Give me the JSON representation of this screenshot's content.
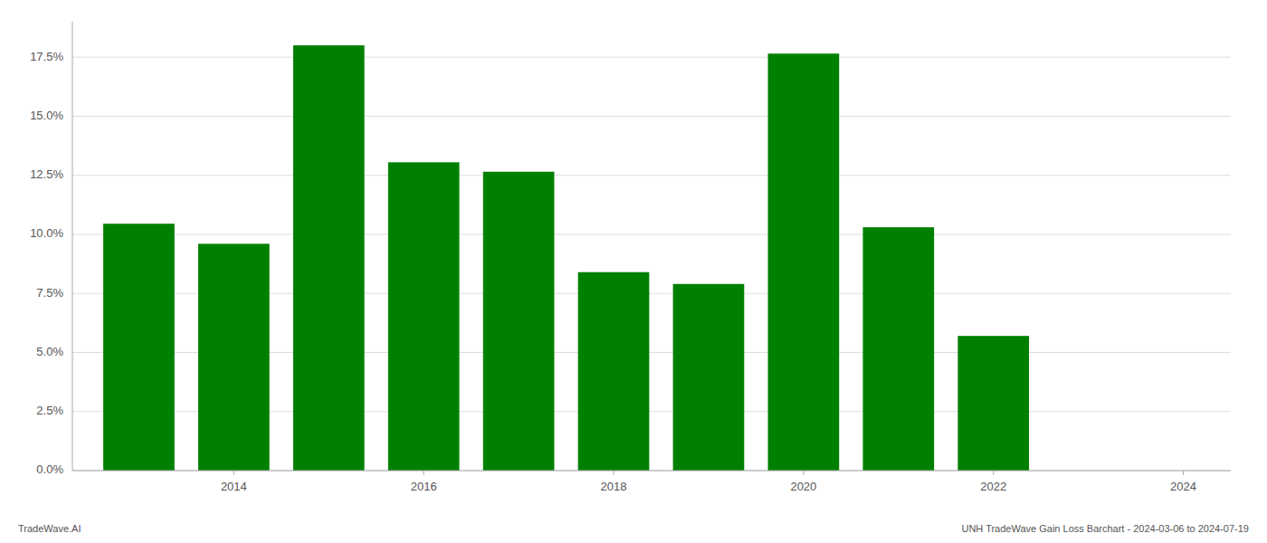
{
  "chart_data": {
    "type": "bar",
    "x": [
      2013,
      2014,
      2015,
      2016,
      2017,
      2018,
      2019,
      2020,
      2021,
      2022,
      2023
    ],
    "values": [
      0.1045,
      0.096,
      0.18,
      0.1305,
      0.1265,
      0.084,
      0.079,
      0.1765,
      0.103,
      0.057,
      0.0
    ],
    "color": "#008000",
    "xlim": [
      2012.3,
      2024.5
    ],
    "xticks": [
      2014,
      2016,
      2018,
      2020,
      2022,
      2024
    ],
    "ylim": [
      0,
      0.19
    ],
    "yticks": [
      {
        "value": 0.0,
        "label": "0.0%"
      },
      {
        "value": 0.025,
        "label": "2.5%"
      },
      {
        "value": 0.05,
        "label": "5.0%"
      },
      {
        "value": 0.075,
        "label": "7.5%"
      },
      {
        "value": 0.1,
        "label": "10.0%"
      },
      {
        "value": 0.125,
        "label": "12.5%"
      },
      {
        "value": 0.15,
        "label": "15.0%"
      },
      {
        "value": 0.175,
        "label": "17.5%"
      }
    ],
    "grid": true,
    "annotations": [
      "TradeWave.AI",
      "UNH TradeWave Gain Loss Barchart - 2024-03-06 to 2024-07-19"
    ]
  }
}
